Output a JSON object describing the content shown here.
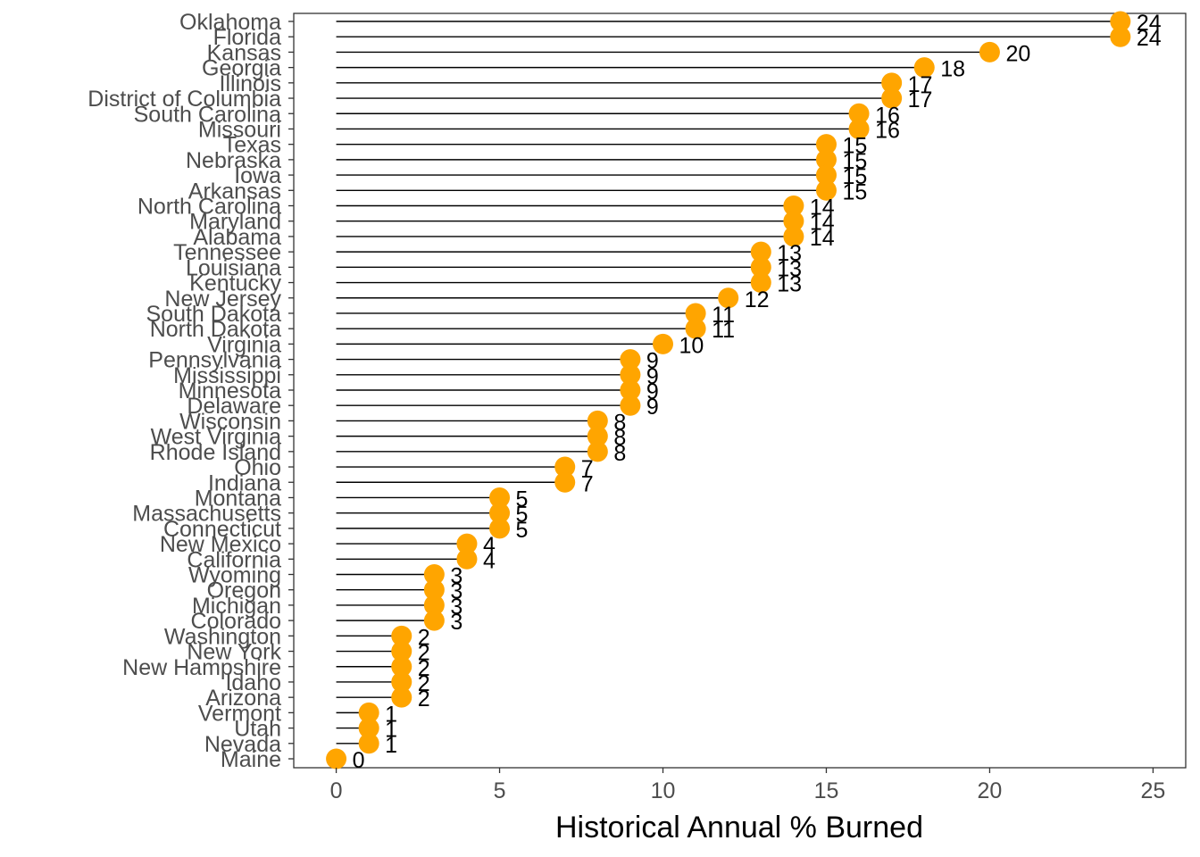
{
  "chart_data": {
    "type": "lollipop",
    "xlabel": "Historical Annual % Burned",
    "ylabel": "",
    "xlim": [
      -1.3,
      26
    ],
    "xticks": [
      0,
      5,
      10,
      15,
      20,
      25
    ],
    "grid": false,
    "legend": "none",
    "colors": {
      "point": "#FFA500",
      "stem": "#000000",
      "label": "#000000"
    },
    "categories": [
      "Oklahoma",
      "Florida",
      "Kansas",
      "Georgia",
      "Illinois",
      "District of Columbia",
      "South Carolina",
      "Missouri",
      "Texas",
      "Nebraska",
      "Iowa",
      "Arkansas",
      "North Carolina",
      "Maryland",
      "Alabama",
      "Tennessee",
      "Louisiana",
      "Kentucky",
      "New Jersey",
      "South Dakota",
      "North Dakota",
      "Virginia",
      "Pennsylvania",
      "Mississippi",
      "Minnesota",
      "Delaware",
      "Wisconsin",
      "West Virginia",
      "Rhode Island",
      "Ohio",
      "Indiana",
      "Montana",
      "Massachusetts",
      "Connecticut",
      "New Mexico",
      "California",
      "Wyoming",
      "Oregon",
      "Michigan",
      "Colorado",
      "Washington",
      "New York",
      "New Hampshire",
      "Idaho",
      "Arizona",
      "Vermont",
      "Utah",
      "Nevada",
      "Maine"
    ],
    "values": [
      24,
      24,
      20,
      18,
      17,
      17,
      16,
      16,
      15,
      15,
      15,
      15,
      14,
      14,
      14,
      13,
      13,
      13,
      12,
      11,
      11,
      10,
      9,
      9,
      9,
      9,
      8,
      8,
      8,
      7,
      7,
      5,
      5,
      5,
      4,
      4,
      3,
      3,
      3,
      3,
      2,
      2,
      2,
      2,
      2,
      1,
      1,
      1,
      0
    ]
  }
}
